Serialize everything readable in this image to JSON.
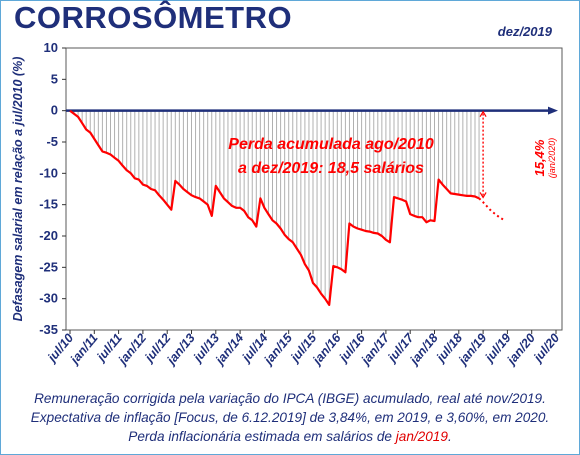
{
  "header": {
    "title": "CORROSÔMETRO",
    "date": "dez/2019"
  },
  "chart_data": {
    "type": "line",
    "ylabel": "Defasagem salarial em relação a jul/2010 (%)",
    "ylim": [
      -35,
      10
    ],
    "yticks": [
      10,
      5,
      0,
      -5,
      -10,
      -15,
      -20,
      -25,
      -30,
      -35
    ],
    "xticks": [
      "jul/10",
      "jan/11",
      "jul/11",
      "jan/12",
      "jul/12",
      "jan/13",
      "jul/13",
      "jan/14",
      "jul/14",
      "jan/15",
      "jul/15",
      "jan/16",
      "jul/16",
      "jan/17",
      "jul/17",
      "jan/18",
      "jul/18",
      "jan/19",
      "jul/19",
      "jan/20",
      "jul/20"
    ],
    "x_start": "2010-07",
    "x_end": "2020-07",
    "series": [
      {
        "values": [
          0,
          -0.5,
          -1,
          -2,
          -3,
          -3.5,
          -4.5,
          -5.5,
          -6.5,
          -6.7,
          -7,
          -7.5,
          -8,
          -8.8,
          -9.5,
          -10,
          -10.8,
          -11,
          -11.8,
          -12,
          -12.5,
          -12.7,
          -13.5,
          -14.2,
          -15,
          -15.8,
          -11.2,
          -11.8,
          -12.5,
          -13,
          -13.5,
          -13.8,
          -14,
          -14.5,
          -15,
          -16.8,
          -12,
          -13,
          -14,
          -14.6,
          -15.2,
          -15.5,
          -15.5,
          -16,
          -17,
          -17.5,
          -18.5,
          -14,
          -15.5,
          -16.5,
          -17.5,
          -18,
          -18.8,
          -19.8,
          -20.5,
          -21,
          -22,
          -23,
          -24.5,
          -25.5,
          -27.5,
          -28.2,
          -29.2,
          -30,
          -31,
          -24.8,
          -25,
          -25.3,
          -25.8,
          -18,
          -18.5,
          -18.8,
          -19,
          -19.2,
          -19.3,
          -19.5,
          -19.6,
          -20,
          -20.6,
          -21,
          -13.8,
          -14,
          -14.2,
          -14.5,
          -16.5,
          -16.8,
          -17,
          -17,
          -17.8,
          -17.5,
          -17.6,
          -11,
          -11.8,
          -12.5,
          -13.2,
          -13.3,
          -13.4,
          -13.5,
          -13.6,
          -13.6,
          -13.7,
          -14
        ]
      },
      {
        "values": [
          -14,
          -14.6,
          -15.3,
          -16,
          -16.5,
          -17,
          -17.4
        ]
      }
    ],
    "annotations": [
      "Perda acumulada ago/2010",
      "a dez/2019: 18,5 salários",
      "15,4%",
      "(jan/2020)"
    ],
    "grid": false
  },
  "caption": {
    "line1": "Remuneração corrigida pela variação do IPCA (IBGE) acumulado, real até nov/2019.",
    "line2": "Expectativa de inflação [Focus, de 6.12.2019] de 3,84%, em 2019, e 3,60%, em 2020.",
    "line3_prefix": "Perda inflacionária estimada em salários de ",
    "line3_highlight": "jan/2019",
    "line3_suffix": "."
  },
  "colors": {
    "axis": "#1f2f7a",
    "line": "#ff0000",
    "bars": "#b0b0b0"
  }
}
